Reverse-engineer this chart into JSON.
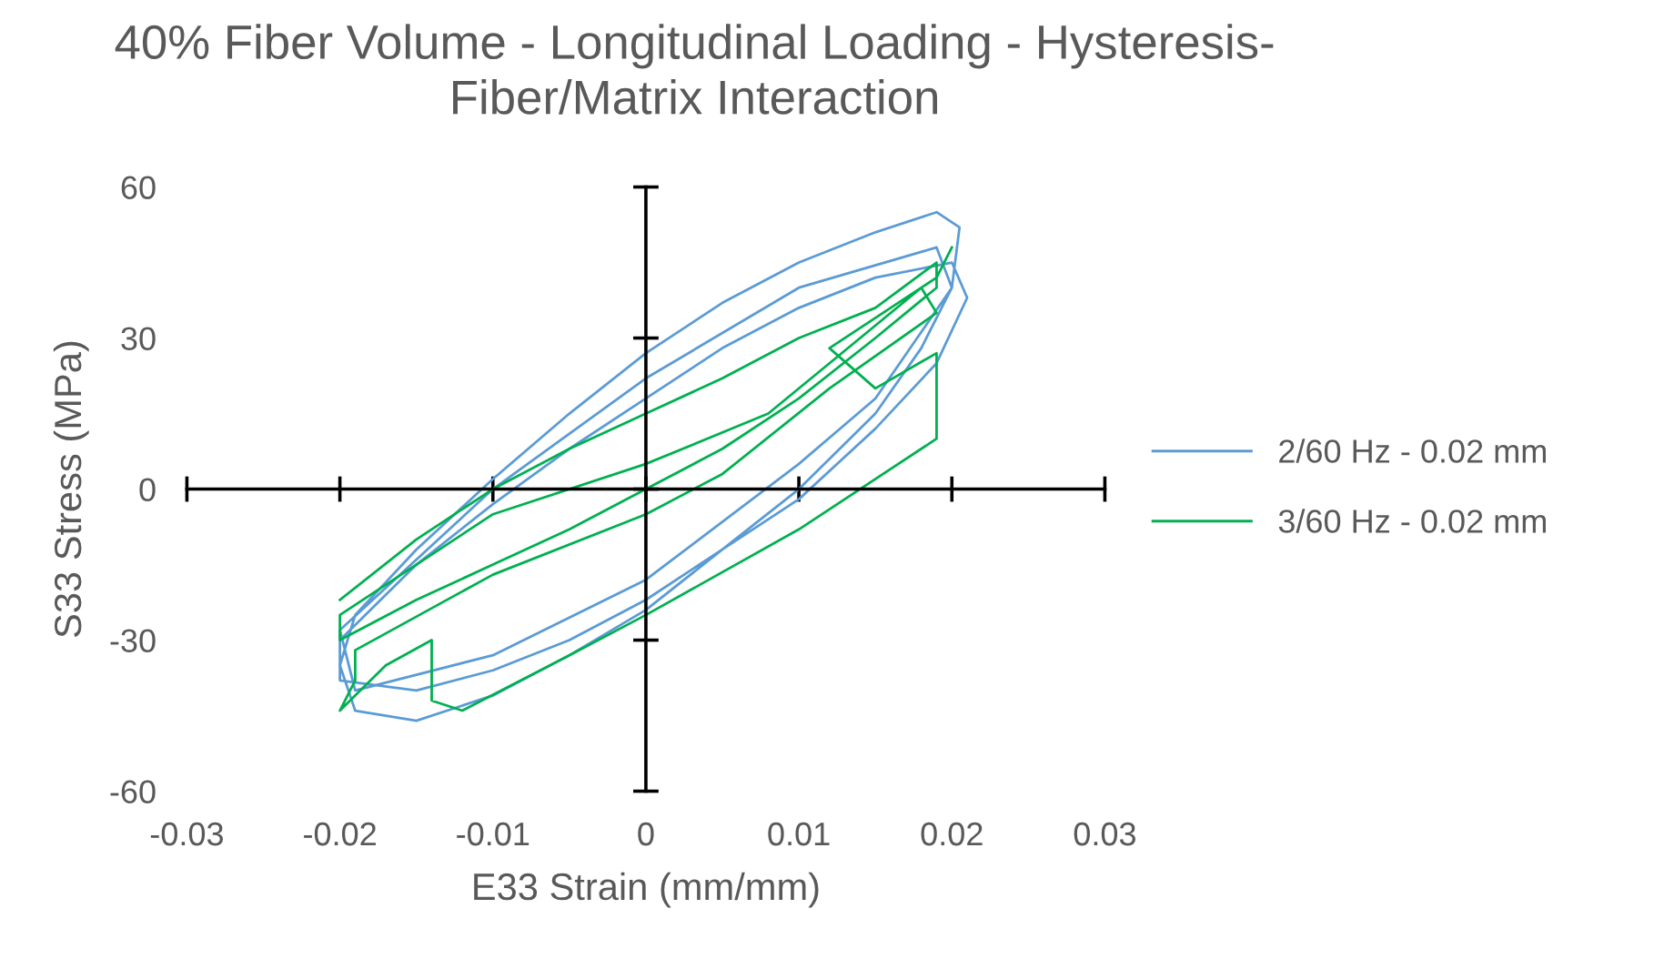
{
  "chart_data": {
    "type": "line",
    "title": "40% Fiber Volume - Longitudinal Loading - Hysteresis-\nFiber/Matrix Interaction",
    "xlabel": "E33 Strain (mm/mm)",
    "ylabel": "S33 Stress (MPa)",
    "xlim": [
      -0.03,
      0.03
    ],
    "ylim": [
      -60,
      60
    ],
    "xticks": [
      -0.03,
      -0.02,
      -0.01,
      0,
      0.01,
      0.02,
      0.03
    ],
    "yticks": [
      -60,
      -30,
      0,
      30,
      60
    ],
    "legend": "right",
    "marker": "none",
    "line_style": "solid",
    "series": [
      {
        "name": "2/60 Hz - 0.02 mm",
        "color": "#5b9bd5",
        "x": [
          -0.02,
          -0.019,
          -0.015,
          -0.01,
          -0.005,
          0,
          0.005,
          0.01,
          0.015,
          0.019,
          0.0205,
          0.02,
          0.018,
          0.015,
          0.01,
          0.005,
          0,
          -0.005,
          -0.01,
          -0.015,
          -0.019,
          -0.02,
          -0.02,
          -0.015,
          -0.01,
          -0.005,
          0,
          0.005,
          0.01,
          0.015,
          0.02,
          0.021,
          0.019,
          0.015,
          0.01,
          0.005,
          0,
          -0.005,
          -0.01,
          -0.015,
          -0.02,
          -0.02,
          -0.01,
          0,
          0.01,
          0.019,
          0.02,
          0.015,
          0.01,
          0,
          -0.01,
          -0.019,
          -0.02
        ],
        "values": [
          -35,
          -25,
          -12,
          2,
          15,
          27,
          37,
          45,
          51,
          55,
          52,
          40,
          28,
          15,
          0,
          -12,
          -24,
          -33,
          -41,
          -46,
          -44,
          -35,
          -30,
          -15,
          -3,
          8,
          18,
          28,
          36,
          42,
          45,
          38,
          25,
          12,
          -2,
          -12,
          -22,
          -30,
          -36,
          -40,
          -38,
          -28,
          0,
          22,
          40,
          48,
          40,
          18,
          5,
          -18,
          -33,
          -40,
          -28
        ]
      },
      {
        "name": "3/60 Hz - 0.02 mm",
        "color": "#00b050",
        "x": [
          -0.02,
          -0.015,
          -0.01,
          -0.005,
          0,
          0.005,
          0.01,
          0.015,
          0.019,
          0.019,
          0.015,
          0.01,
          0.005,
          0,
          -0.005,
          -0.01,
          -0.015,
          -0.02,
          -0.02,
          -0.01,
          0,
          0.008,
          0.012,
          0.018,
          0.019,
          0.012,
          0.005,
          0,
          -0.01,
          -0.019,
          -0.019,
          -0.02,
          -0.017,
          -0.014,
          -0.014,
          -0.012,
          -0.005,
          0,
          0.01,
          0.019,
          0.019,
          0.015,
          0.012,
          0.019,
          0.02
        ],
        "values": [
          -22,
          -10,
          0,
          8,
          15,
          22,
          30,
          36,
          45,
          40,
          30,
          18,
          8,
          0,
          -8,
          -15,
          -22,
          -30,
          -25,
          -5,
          5,
          15,
          25,
          40,
          35,
          20,
          3,
          -5,
          -17,
          -32,
          -38,
          -44,
          -35,
          -30,
          -42,
          -44,
          -33,
          -25,
          -8,
          10,
          27,
          20,
          28,
          42,
          48
        ]
      }
    ]
  }
}
